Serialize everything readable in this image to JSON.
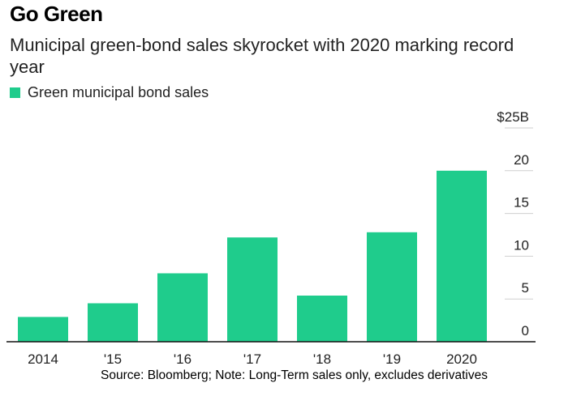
{
  "header": {
    "title": "Go Green",
    "subtitle": "Municipal green-bond sales skyrocket with 2020 marking record year"
  },
  "legend": {
    "label": "Green municipal bond sales"
  },
  "colors": {
    "bar": "#1fcc8c",
    "axis": "#111111",
    "text": "#222222"
  },
  "footer": {
    "source": "Source: Bloomberg; Note: Long-Term sales only, excludes derivatives"
  },
  "chart_data": {
    "type": "bar",
    "title": "Go Green",
    "subtitle": "Municipal green-bond sales skyrocket with 2020 marking record year",
    "categories": [
      "2014",
      "'15",
      "'16",
      "'17",
      "'18",
      "'19",
      "2020"
    ],
    "series": [
      {
        "name": "Green municipal bond sales",
        "values": [
          2.9,
          4.5,
          8.0,
          12.2,
          5.4,
          12.8,
          20.0
        ]
      }
    ],
    "ylim": [
      0,
      25
    ],
    "yticks": [
      0,
      5,
      10,
      15,
      20,
      25
    ],
    "ytick_labels": [
      "0",
      "5",
      "10",
      "15",
      "20",
      "$25B"
    ],
    "y_axis_position": "right",
    "grid": false,
    "legend": "top-left"
  }
}
